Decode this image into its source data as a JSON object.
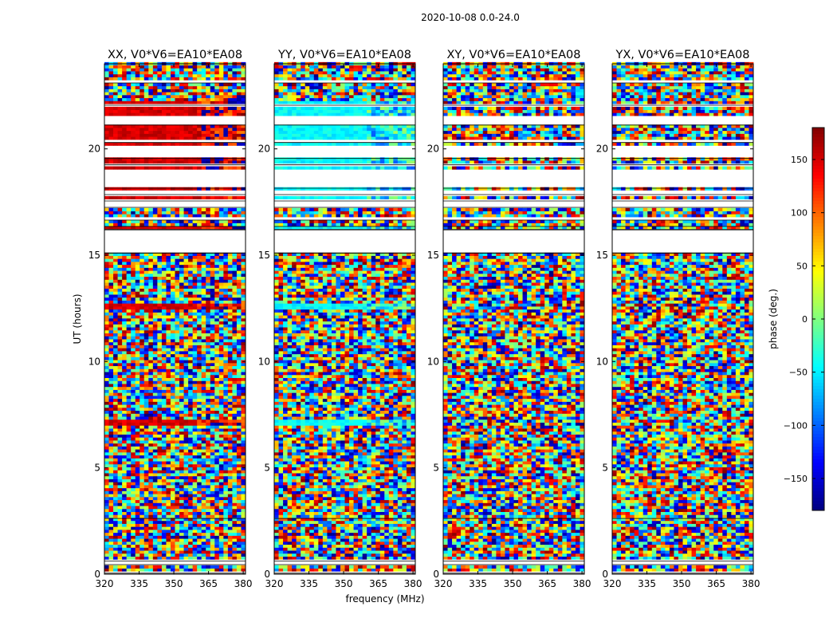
{
  "figure": {
    "suptitle": "2020-10-08 0.0-24.0"
  },
  "chart_data": {
    "type": "heatmap",
    "ylabel": "UT (hours)",
    "xlabel": "frequency (MHz)",
    "xlim": [
      320,
      381
    ],
    "ylim": [
      0,
      24
    ],
    "x_ticks": [
      320,
      335,
      350,
      365,
      380
    ],
    "y_ticks": [
      0,
      5,
      10,
      15,
      20
    ],
    "panels": [
      {
        "title": "XX, V0*V6=EA10*EA08",
        "pol": "XX",
        "offset_deg": 150
      },
      {
        "title": "YY, V0*V6=EA10*EA08",
        "pol": "YY",
        "offset_deg": -45
      },
      {
        "title": "XY, V0*V6=EA10*EA08",
        "pol": "XY",
        "offset_deg": 0
      },
      {
        "title": "YX, V0*V6=EA10*EA08",
        "pol": "YX",
        "offset_deg": 0
      }
    ],
    "flagged_hours": [
      [
        0.05,
        0.12
      ],
      [
        0.45,
        0.52
      ],
      [
        0.62,
        0.7
      ],
      [
        2.62,
        2.72
      ],
      [
        16.35,
        16.42
      ],
      [
        16.65,
        16.8
      ],
      [
        17.25,
        17.45
      ],
      [
        17.55,
        17.6
      ],
      [
        17.85,
        18.05
      ],
      [
        18.15,
        19.05
      ],
      [
        19.25,
        19.3
      ],
      [
        19.55,
        20.15
      ],
      [
        20.3,
        20.5
      ],
      [
        21.12,
        21.5
      ],
      [
        22.05,
        22.12
      ],
      [
        23.1,
        23.18
      ]
    ],
    "colorbar": {
      "label": "phase (deg.)",
      "range": [
        -180,
        180
      ],
      "ticks": [
        150,
        100,
        50,
        0,
        -50,
        -100,
        -150
      ],
      "tick_labels": [
        "150",
        "100",
        "50",
        "0",
        "−50",
        "−100",
        "−150"
      ],
      "colormap": "jet"
    }
  }
}
